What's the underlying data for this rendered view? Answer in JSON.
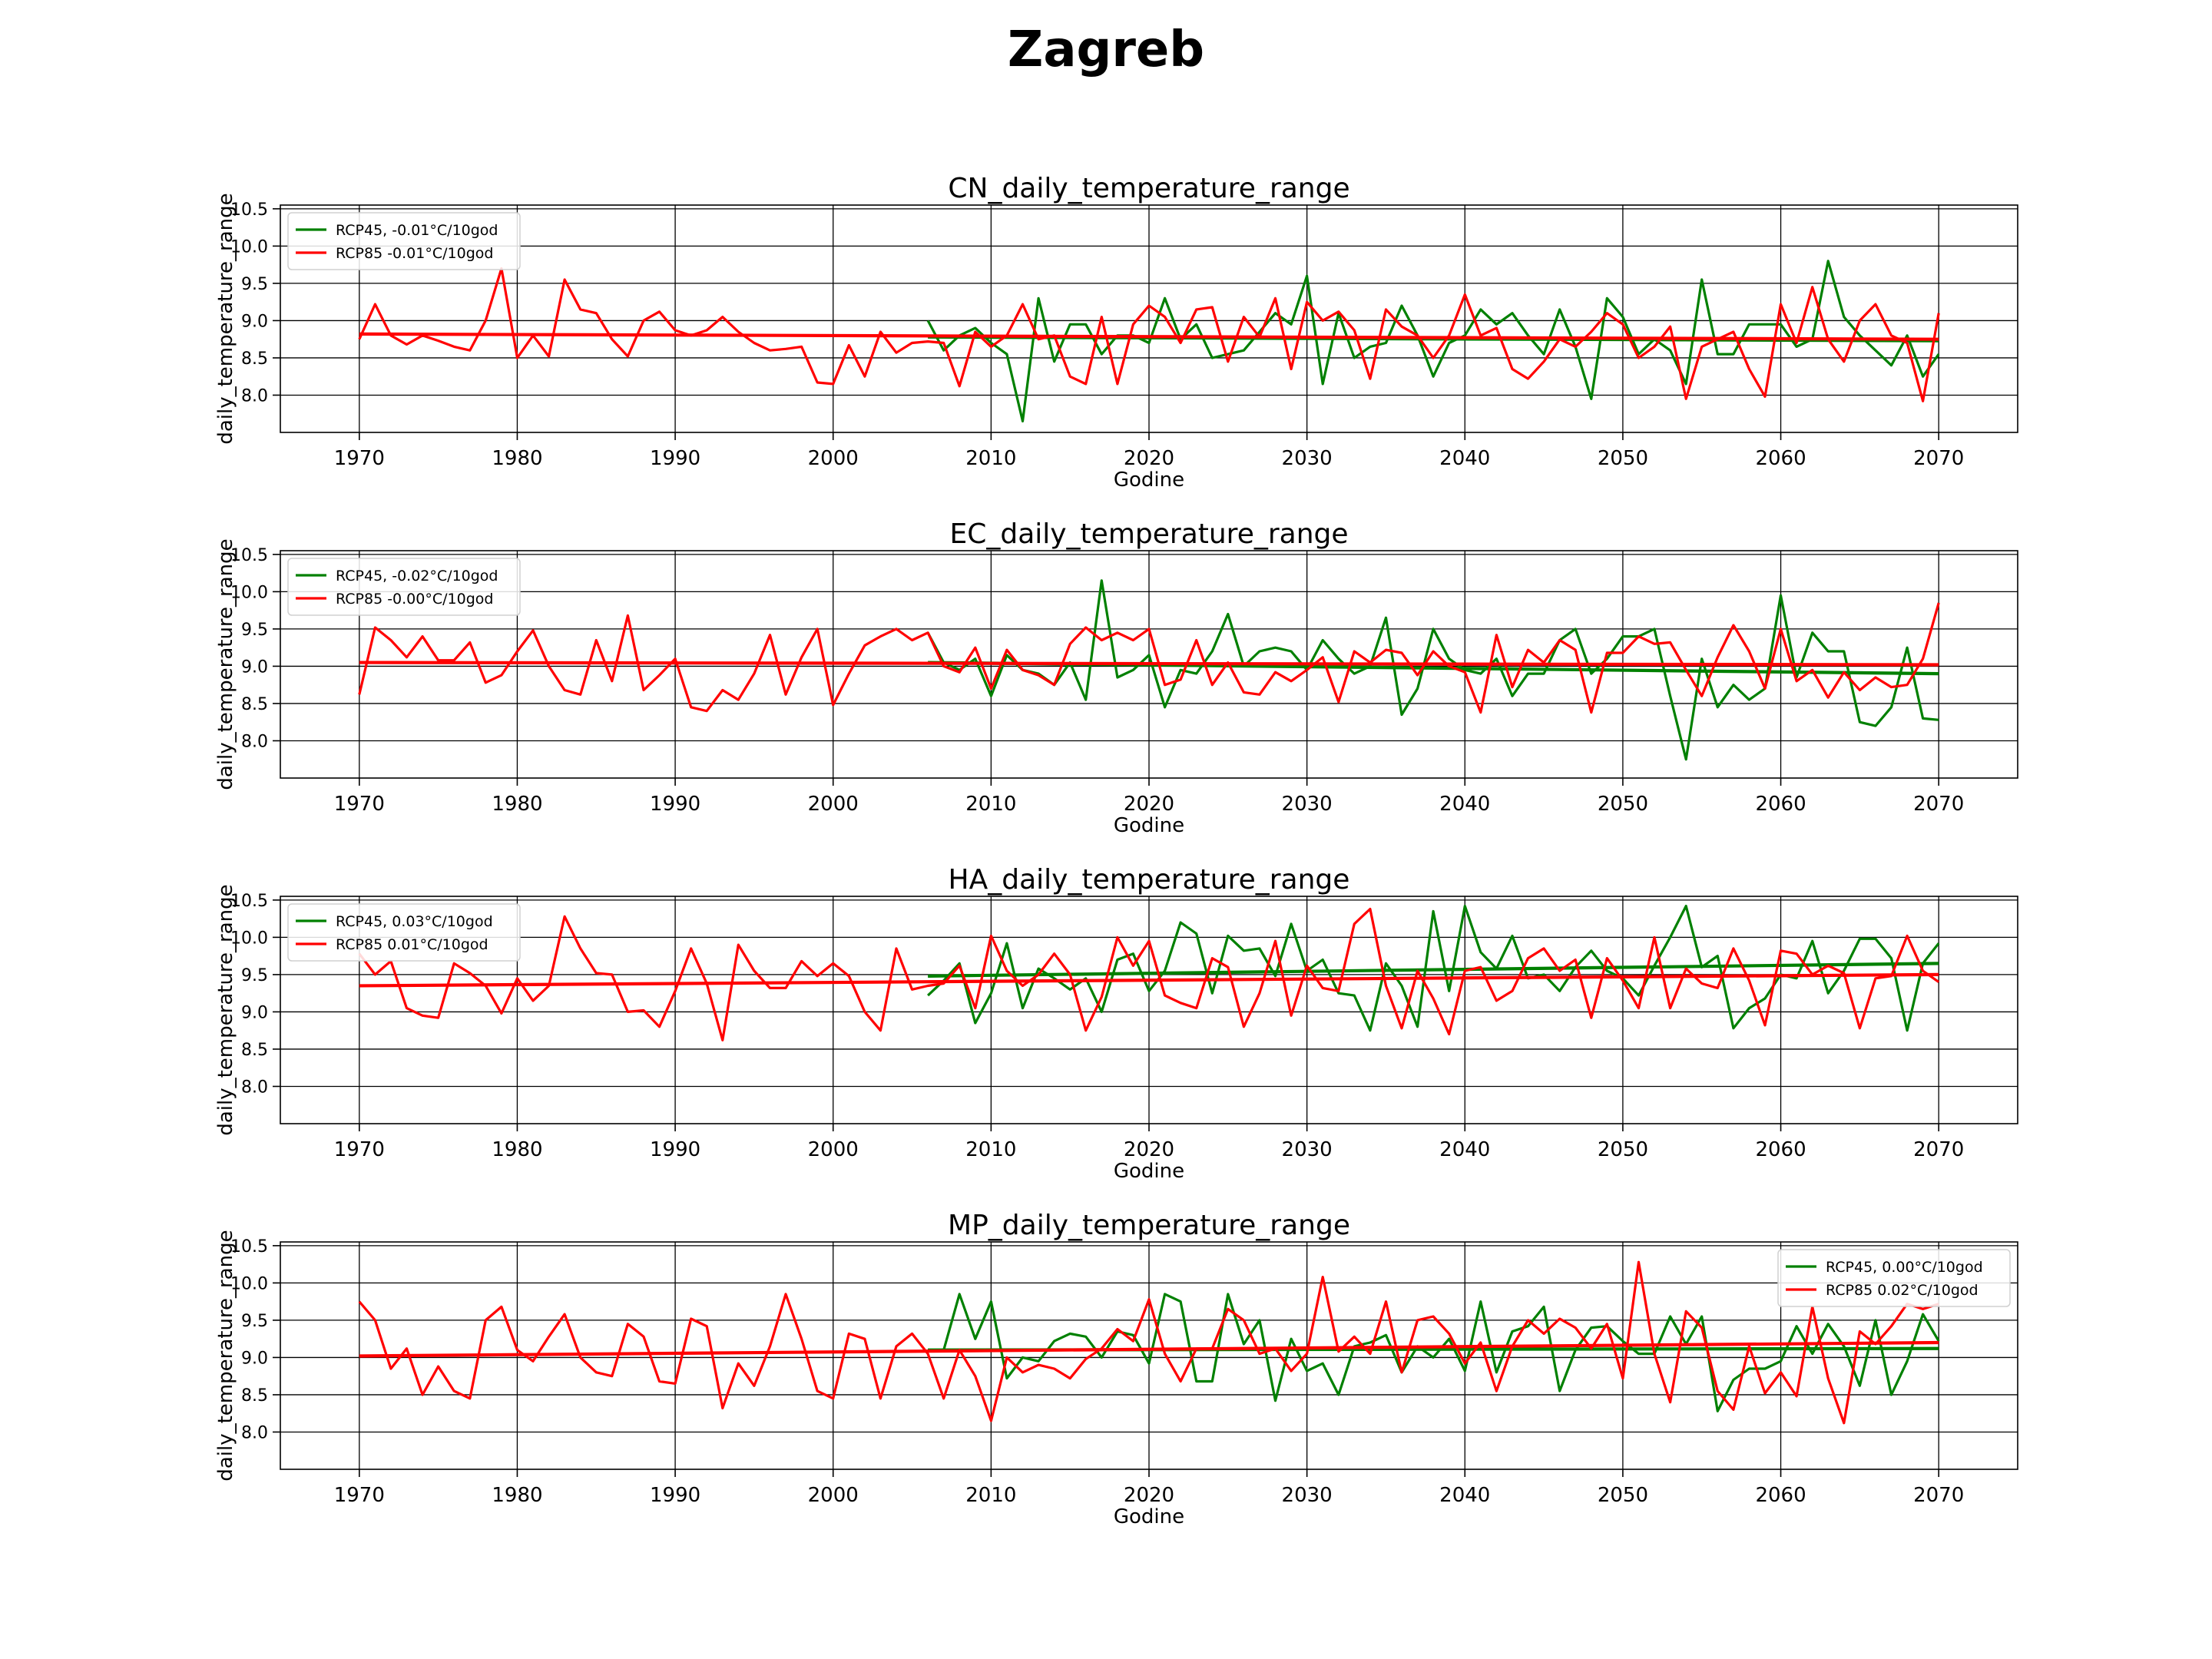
{
  "figure": {
    "title": "Zagreb"
  },
  "chart_data": [
    {
      "type": "line",
      "title": "CN_daily_temperature_range",
      "xlabel": "Godine",
      "ylabel": "daily_temperature_range",
      "xlim": [
        1965,
        2075
      ],
      "ylim": [
        7.5,
        10.55
      ],
      "xticks": [
        1970,
        1980,
        1990,
        2000,
        2010,
        2020,
        2030,
        2040,
        2050,
        2060,
        2070
      ],
      "yticks": [
        8.0,
        8.5,
        9.0,
        9.5,
        10.0,
        10.5
      ],
      "grid": true,
      "legend_position": "upper-left",
      "series": [
        {
          "name": "RCP45, -0.01°C/10god",
          "color": "#008000",
          "x_start": 2006,
          "values": [
            9.0,
            8.6,
            8.8,
            8.9,
            8.7,
            8.55,
            7.65,
            9.3,
            8.45,
            8.95,
            8.95,
            8.55,
            8.8,
            8.8,
            8.7,
            9.3,
            8.75,
            8.95,
            8.5,
            8.55,
            8.6,
            8.85,
            9.1,
            8.95,
            9.6,
            8.15,
            9.1,
            8.5,
            8.65,
            8.7,
            9.2,
            8.8,
            8.25,
            8.7,
            8.8,
            9.15,
            8.95,
            9.1,
            8.8,
            8.55,
            9.15,
            8.65,
            7.95,
            9.3,
            9.05,
            8.55,
            8.75,
            8.6,
            8.15,
            9.55,
            8.55,
            8.55,
            8.95,
            8.95,
            8.95,
            8.65,
            8.75,
            9.8,
            9.05,
            8.8,
            8.6,
            8.4,
            8.8,
            8.25,
            8.55
          ],
          "trend": [
            8.78,
            8.73
          ]
        },
        {
          "name": "RCP85 -0.01°C/10god",
          "color": "#ff0000",
          "x_start": 1970,
          "values": [
            8.75,
            9.22,
            8.8,
            8.68,
            8.8,
            8.73,
            8.65,
            8.6,
            9.0,
            9.7,
            8.5,
            8.8,
            8.52,
            9.55,
            9.15,
            9.1,
            8.75,
            8.52,
            9.0,
            9.12,
            8.87,
            8.8,
            8.87,
            9.05,
            8.85,
            8.7,
            8.6,
            8.62,
            8.65,
            8.17,
            8.15,
            8.67,
            8.25,
            8.85,
            8.57,
            8.7,
            8.72,
            8.7,
            8.12,
            8.85,
            8.65,
            8.8,
            9.22,
            8.75,
            8.8,
            8.25,
            8.15,
            9.05,
            8.15,
            8.95,
            9.2,
            9.05,
            8.7,
            9.15,
            9.18,
            8.45,
            9.05,
            8.78,
            9.3,
            8.35,
            9.25,
            9.0,
            9.12,
            8.87,
            8.22,
            9.15,
            8.92,
            8.8,
            8.5,
            8.8,
            9.35,
            8.8,
            8.9,
            8.35,
            8.22,
            8.45,
            8.75,
            8.65,
            8.85,
            9.1,
            8.95,
            8.5,
            8.65,
            8.92,
            7.95,
            8.65,
            8.75,
            8.85,
            8.35,
            7.98,
            9.22,
            8.7,
            9.45,
            8.75,
            8.45,
            9.0,
            9.22,
            8.8,
            8.7,
            7.92,
            9.1
          ],
          "trend": [
            8.82,
            8.75
          ]
        }
      ]
    },
    {
      "type": "line",
      "title": "EC_daily_temperature_range",
      "xlabel": "Godine",
      "ylabel": "daily_temperature_range",
      "xlim": [
        1965,
        2075
      ],
      "ylim": [
        7.5,
        10.55
      ],
      "xticks": [
        1970,
        1980,
        1990,
        2000,
        2010,
        2020,
        2030,
        2040,
        2050,
        2060,
        2070
      ],
      "yticks": [
        8.0,
        8.5,
        9.0,
        9.5,
        10.0,
        10.5
      ],
      "grid": true,
      "legend_position": "upper-left",
      "series": [
        {
          "name": "RCP45, -0.02°C/10god",
          "color": "#008000",
          "x_start": 2006,
          "values": [
            9.45,
            9.05,
            8.95,
            9.1,
            8.6,
            9.15,
            8.95,
            8.9,
            8.75,
            9.05,
            8.55,
            10.15,
            8.85,
            8.95,
            9.15,
            8.45,
            8.95,
            8.9,
            9.2,
            9.7,
            9.0,
            9.2,
            9.25,
            9.2,
            8.95,
            9.35,
            9.1,
            8.9,
            9.0,
            9.65,
            8.35,
            8.7,
            9.5,
            9.1,
            8.95,
            8.9,
            9.1,
            8.6,
            8.9,
            8.9,
            9.35,
            9.5,
            8.9,
            9.1,
            9.4,
            9.4,
            9.5,
            8.6,
            7.75,
            9.1,
            8.45,
            8.75,
            8.55,
            8.7,
            9.95,
            8.85,
            9.45,
            9.2,
            9.2,
            8.25,
            8.2,
            8.45,
            9.25,
            8.3,
            8.28
          ],
          "trend": [
            9.05,
            8.9
          ]
        },
        {
          "name": "RCP85 -0.00°C/10god",
          "color": "#ff0000",
          "x_start": 1970,
          "values": [
            8.62,
            9.52,
            9.35,
            9.12,
            9.4,
            9.08,
            9.08,
            9.32,
            8.78,
            8.88,
            9.2,
            9.48,
            9.0,
            8.68,
            8.62,
            9.35,
            8.8,
            9.68,
            8.68,
            8.88,
            9.1,
            8.45,
            8.4,
            8.68,
            8.55,
            8.9,
            9.42,
            8.62,
            9.12,
            9.5,
            8.48,
            8.9,
            9.28,
            9.4,
            9.5,
            9.35,
            9.45,
            9.0,
            8.92,
            9.25,
            8.7,
            9.22,
            8.95,
            8.88,
            8.75,
            9.3,
            9.52,
            9.35,
            9.45,
            9.35,
            9.5,
            8.75,
            8.82,
            9.35,
            8.75,
            9.05,
            8.65,
            8.62,
            8.92,
            8.8,
            8.95,
            9.12,
            8.52,
            9.2,
            9.05,
            9.22,
            9.18,
            8.88,
            9.2,
            9.0,
            8.92,
            8.38,
            9.42,
            8.72,
            9.22,
            9.05,
            9.35,
            9.22,
            8.38,
            9.18,
            9.18,
            9.4,
            9.3,
            9.32,
            8.95,
            8.6,
            9.12,
            9.55,
            9.2,
            8.7,
            9.5,
            8.8,
            8.95,
            8.58,
            8.92,
            8.68,
            8.85,
            8.72,
            8.75,
            9.1,
            9.85
          ],
          "trend": [
            9.05,
            9.02
          ]
        }
      ]
    },
    {
      "type": "line",
      "title": "HA_daily_temperature_range",
      "xlabel": "Godine",
      "ylabel": "daily_temperature_range",
      "xlim": [
        1965,
        2075
      ],
      "ylim": [
        7.5,
        10.55
      ],
      "xticks": [
        1970,
        1980,
        1990,
        2000,
        2010,
        2020,
        2030,
        2040,
        2050,
        2060,
        2070
      ],
      "yticks": [
        8.0,
        8.5,
        9.0,
        9.5,
        10.0,
        10.5
      ],
      "grid": true,
      "legend_position": "upper-left",
      "series": [
        {
          "name": "RCP45, 0.03°C/10god",
          "color": "#008000",
          "x_start": 2006,
          "values": [
            9.22,
            9.42,
            9.65,
            8.85,
            9.25,
            9.92,
            9.05,
            9.58,
            9.45,
            9.3,
            9.45,
            9.0,
            9.7,
            9.78,
            9.28,
            9.55,
            10.2,
            10.05,
            9.25,
            10.02,
            9.82,
            9.85,
            9.48,
            10.18,
            9.55,
            9.7,
            9.25,
            9.22,
            8.75,
            9.65,
            9.35,
            8.8,
            10.35,
            9.28,
            10.42,
            9.8,
            9.58,
            10.02,
            9.45,
            9.5,
            9.28,
            9.6,
            9.82,
            9.55,
            9.45,
            9.22,
            9.62,
            10.0,
            10.42,
            9.6,
            9.75,
            8.78,
            9.05,
            9.18,
            9.5,
            9.45,
            9.95,
            9.25,
            9.55,
            9.98,
            9.98,
            9.72,
            8.75,
            9.65,
            9.92
          ],
          "trend": [
            9.48,
            9.65
          ]
        },
        {
          "name": "RCP85 0.01°C/10god",
          "color": "#ff0000",
          "x_start": 1970,
          "values": [
            9.78,
            9.5,
            9.68,
            9.05,
            8.95,
            8.92,
            9.65,
            9.52,
            9.35,
            8.98,
            9.45,
            9.15,
            9.35,
            10.28,
            9.85,
            9.52,
            9.5,
            9.0,
            9.02,
            8.8,
            9.28,
            9.85,
            9.38,
            8.62,
            9.9,
            9.55,
            9.32,
            9.32,
            9.68,
            9.48,
            9.65,
            9.48,
            9.0,
            8.75,
            9.85,
            9.3,
            9.35,
            9.38,
            9.62,
            9.05,
            10.02,
            9.55,
            9.35,
            9.5,
            9.78,
            9.5,
            8.75,
            9.2,
            10.0,
            9.62,
            9.95,
            9.22,
            9.12,
            9.05,
            9.72,
            9.6,
            8.8,
            9.25,
            9.95,
            8.95,
            9.62,
            9.32,
            9.28,
            10.18,
            10.38,
            9.35,
            8.78,
            9.55,
            9.18,
            8.7,
            9.55,
            9.6,
            9.15,
            9.28,
            9.72,
            9.85,
            9.55,
            9.7,
            8.92,
            9.72,
            9.42,
            9.05,
            10.0,
            9.05,
            9.58,
            9.38,
            9.32,
            9.85,
            9.42,
            8.82,
            9.82,
            9.78,
            9.5,
            9.62,
            9.52,
            8.78,
            9.45,
            9.48,
            10.02,
            9.55,
            9.4
          ],
          "trend": [
            9.35,
            9.5
          ]
        }
      ]
    },
    {
      "type": "line",
      "title": "MP_daily_temperature_range",
      "xlabel": "Godine",
      "ylabel": "daily_temperature_range",
      "xlim": [
        1965,
        2075
      ],
      "ylim": [
        7.5,
        10.55
      ],
      "xticks": [
        1970,
        1980,
        1990,
        2000,
        2010,
        2020,
        2030,
        2040,
        2050,
        2060,
        2070
      ],
      "yticks": [
        8.0,
        8.5,
        9.0,
        9.5,
        10.0,
        10.5
      ],
      "grid": true,
      "legend_position": "upper-right",
      "series": [
        {
          "name": "RCP45, 0.00°C/10god",
          "color": "#008000",
          "x_start": 2006,
          "values": [
            9.1,
            9.1,
            9.85,
            9.25,
            9.75,
            8.72,
            9.0,
            8.95,
            9.22,
            9.32,
            9.28,
            9.0,
            9.35,
            9.3,
            8.92,
            9.85,
            9.75,
            8.68,
            8.68,
            9.85,
            9.18,
            9.5,
            8.42,
            9.25,
            8.82,
            8.92,
            8.5,
            9.15,
            9.2,
            9.3,
            8.8,
            9.15,
            9.0,
            9.25,
            8.82,
            9.75,
            8.8,
            9.35,
            9.42,
            9.68,
            8.55,
            9.1,
            9.4,
            9.42,
            9.22,
            9.05,
            9.05,
            9.55,
            9.18,
            9.55,
            8.28,
            8.7,
            8.85,
            8.85,
            8.95,
            9.42,
            9.05,
            9.45,
            9.15,
            8.62,
            9.5,
            8.5,
            8.95,
            9.58,
            9.22
          ],
          "trend": [
            9.1,
            9.12
          ]
        },
        {
          "name": "RCP85 0.02°C/10god",
          "color": "#ff0000",
          "x_start": 1970,
          "values": [
            9.75,
            9.5,
            8.85,
            9.12,
            8.5,
            8.88,
            8.55,
            8.45,
            9.5,
            9.68,
            9.1,
            8.95,
            9.28,
            9.58,
            9.0,
            8.8,
            8.75,
            9.45,
            9.28,
            8.68,
            8.65,
            9.52,
            9.42,
            8.32,
            8.92,
            8.62,
            9.15,
            9.85,
            9.25,
            8.55,
            8.45,
            9.32,
            9.25,
            8.45,
            9.15,
            9.32,
            9.05,
            8.45,
            9.1,
            8.75,
            8.15,
            9.0,
            8.8,
            8.9,
            8.85,
            8.72,
            8.98,
            9.12,
            9.38,
            9.22,
            9.78,
            9.05,
            8.68,
            9.12,
            9.12,
            9.65,
            9.5,
            9.05,
            9.12,
            8.82,
            9.05,
            10.08,
            9.08,
            9.28,
            9.05,
            9.75,
            8.8,
            9.5,
            9.55,
            9.32,
            8.92,
            9.2,
            8.55,
            9.15,
            9.5,
            9.32,
            9.52,
            9.4,
            9.12,
            9.45,
            8.72,
            10.28,
            9.05,
            8.4,
            9.62,
            9.4,
            8.55,
            8.3,
            9.15,
            8.52,
            8.8,
            8.48,
            9.68,
            8.72,
            8.12,
            9.35,
            9.18,
            9.42,
            9.72,
            9.65,
            9.72
          ],
          "trend": [
            9.02,
            9.2
          ]
        }
      ]
    }
  ]
}
